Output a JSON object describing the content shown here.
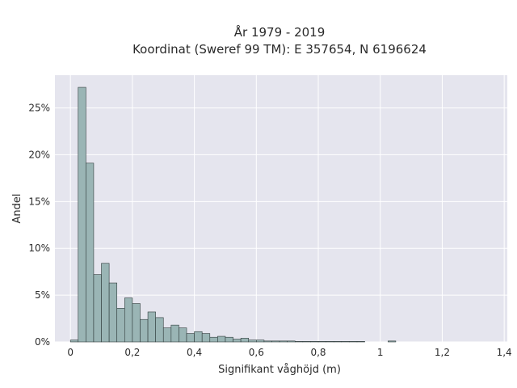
{
  "chart_data": {
    "type": "bar",
    "title": "År 1979 - 2019",
    "subtitle": "Koordinat (Sweref 99 TM): E 357654, N 6196624",
    "xlabel": "Signifikant våghöjd (m)",
    "ylabel": "Andel",
    "xlim": [
      -0.05,
      1.41
    ],
    "ylim": [
      0,
      0.285
    ],
    "grid": true,
    "bar_color": "#9ab5b5",
    "bar_edge_color": "#2f3b3b",
    "plot_background": "#e5e5ee",
    "bin_width": 0.025,
    "bin_starts": [
      0.0,
      0.025,
      0.05,
      0.075,
      0.1,
      0.125,
      0.15,
      0.175,
      0.2,
      0.225,
      0.25,
      0.275,
      0.3,
      0.325,
      0.35,
      0.375,
      0.4,
      0.425,
      0.45,
      0.475,
      0.5,
      0.525,
      0.55,
      0.575,
      0.6,
      0.625,
      0.65,
      0.675,
      0.7,
      0.725,
      0.75,
      0.775,
      0.8,
      0.825,
      0.85,
      0.875,
      0.9,
      0.925,
      1.025
    ],
    "values": [
      0.002,
      0.272,
      0.191,
      0.072,
      0.084,
      0.063,
      0.036,
      0.047,
      0.041,
      0.024,
      0.032,
      0.026,
      0.015,
      0.018,
      0.015,
      0.009,
      0.011,
      0.009,
      0.005,
      0.006,
      0.005,
      0.003,
      0.004,
      0.002,
      0.002,
      0.001,
      0.001,
      0.001,
      0.001,
      0.0005,
      0.0005,
      0.0005,
      0.0005,
      0.0005,
      0.0005,
      0.0005,
      0.0005,
      0.0005,
      0.001
    ],
    "x_ticks": [
      {
        "value": 0,
        "label": "0"
      },
      {
        "value": 0.2,
        "label": "0,2"
      },
      {
        "value": 0.4,
        "label": "0,4"
      },
      {
        "value": 0.6,
        "label": "0,6"
      },
      {
        "value": 0.8,
        "label": "0,8"
      },
      {
        "value": 1.0,
        "label": "1"
      },
      {
        "value": 1.2,
        "label": "1,2"
      },
      {
        "value": 1.4,
        "label": "1,4"
      }
    ],
    "y_ticks": [
      {
        "value": 0,
        "label": "0%"
      },
      {
        "value": 0.05,
        "label": "5%"
      },
      {
        "value": 0.1,
        "label": "10%"
      },
      {
        "value": 0.15,
        "label": "15%"
      },
      {
        "value": 0.2,
        "label": "20%"
      },
      {
        "value": 0.25,
        "label": "25%"
      }
    ]
  }
}
